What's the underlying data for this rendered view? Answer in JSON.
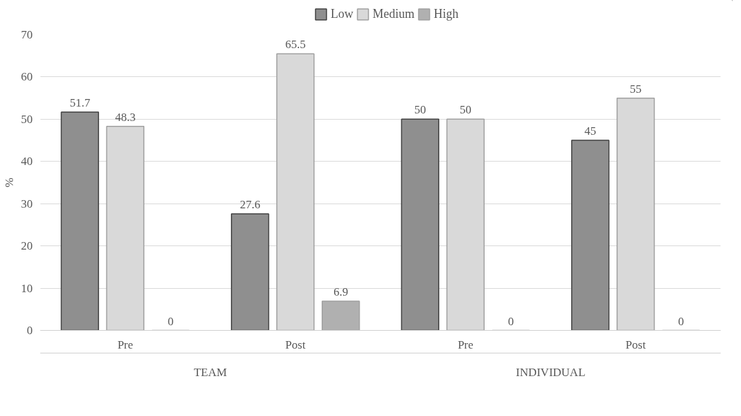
{
  "chart_data": {
    "type": "bar",
    "ylabel": "%",
    "categories": [
      "Pre",
      "Post",
      "Pre",
      "Post"
    ],
    "series": [
      {
        "name": "Low",
        "color": "#8f8f8f",
        "values": [
          51.7,
          27.6,
          50,
          45
        ]
      },
      {
        "name": "Medium",
        "color": "#d9d9d9",
        "values": [
          48.3,
          65.5,
          50,
          55
        ]
      },
      {
        "name": "High",
        "color": "#b0b0b0",
        "values": [
          0,
          6.9,
          0,
          0
        ]
      }
    ],
    "annotations": [
      "TEAM",
      "INDIVIDUAL"
    ],
    "ylim": [
      0,
      70
    ],
    "yticks": [
      0,
      10,
      20,
      30,
      40,
      50,
      60,
      70
    ],
    "grid": "y",
    "legend": "top",
    "data_labels": true
  }
}
